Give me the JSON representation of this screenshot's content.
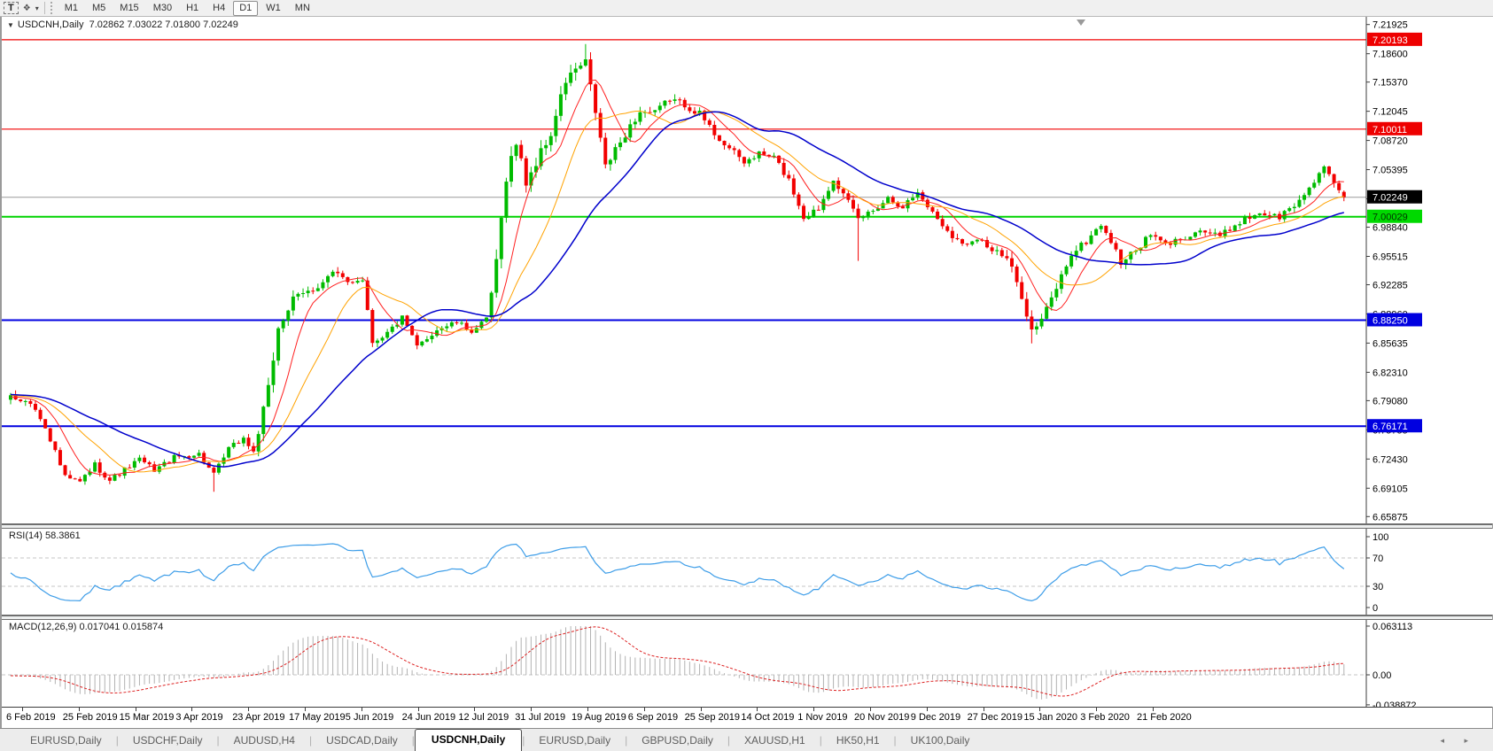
{
  "toolbar": {
    "select_tool_label": "T",
    "styles_icon_glyph": "❖",
    "dropdown_caret": "▾",
    "timeframes": [
      "M1",
      "M5",
      "M15",
      "M30",
      "H1",
      "H4",
      "D1",
      "W1",
      "MN"
    ],
    "active_timeframe": "D1"
  },
  "header": {
    "collapse_glyph": "▼",
    "symbol_period": "USDCNH,Daily",
    "ohlc_text": "7.02862 7.03022 7.01800 7.02249"
  },
  "price_axis": {
    "ticks": [
      "7.21925",
      "7.18600",
      "7.15370",
      "7.12045",
      "7.08720",
      "7.05395",
      "7.02070",
      "6.98840",
      "6.95515",
      "6.92285",
      "6.88960",
      "6.85635",
      "6.82310",
      "6.79080",
      "6.75755",
      "6.72430",
      "6.69105",
      "6.65875"
    ],
    "badges": [
      {
        "label": "7.20193",
        "price": 7.20193,
        "bg": "#ee0000",
        "fg": "#ffffff"
      },
      {
        "label": "7.10011",
        "price": 7.10011,
        "bg": "#ee0000",
        "fg": "#ffffff"
      },
      {
        "label": "7.02249",
        "price": 7.02249,
        "bg": "#000000",
        "fg": "#ffffff"
      },
      {
        "label": "7.00029",
        "price": 7.00029,
        "bg": "#00d900",
        "fg": "#003300"
      },
      {
        "label": "6.88250",
        "price": 6.8825,
        "bg": "#0000e0",
        "fg": "#ffffff"
      },
      {
        "label": "6.76171",
        "price": 6.76171,
        "bg": "#0000e0",
        "fg": "#ffffff"
      }
    ]
  },
  "rsi_panel": {
    "label": "RSI(14) 58.3861",
    "axis_ticks": [
      "100",
      "70",
      "30",
      "0"
    ],
    "levels": [
      70,
      30
    ],
    "line_color": "#3d9de8"
  },
  "macd_panel": {
    "label": "MACD(12,26,9) 0.017041 0.015874",
    "axis_ticks": [
      "0.063113",
      "0.00",
      "-0.038872"
    ],
    "axis_values": [
      0.063113,
      0.0,
      -0.038872
    ],
    "histogram_color": "#b2b2b2",
    "signal_color": "#dd2222"
  },
  "date_axis": {
    "labels": [
      "6 Feb 2019",
      "25 Feb 2019",
      "15 Mar 2019",
      "3 Apr 2019",
      "23 Apr 2019",
      "17 May 2019",
      "5 Jun 2019",
      "24 Jun 2019",
      "12 Jul 2019",
      "31 Jul 2019",
      "19 Aug 2019",
      "6 Sep 2019",
      "25 Sep 2019",
      "14 Oct 2019",
      "1 Nov 2019",
      "20 Nov 2019",
      "9 Dec 2019",
      "27 Dec 2019",
      "15 Jan 2020",
      "3 Feb 2020",
      "21 Feb 2020"
    ]
  },
  "tab_bar": {
    "tabs": [
      "EURUSD,Daily",
      "USDCHF,Daily",
      "AUDUSD,H4",
      "USDCAD,Daily",
      "USDCNH,Daily",
      "EURUSD,Daily",
      "GBPUSD,Daily",
      "XAUUSD,H1",
      "HK50,H1",
      "UK100,Daily"
    ],
    "active_index": 4,
    "left_arrow": "◂",
    "right_arrow": "▸"
  },
  "chart_data": {
    "type": "candlestick",
    "symbol": "USDCNH",
    "timeframe": "Daily",
    "n_bars": 270,
    "last_ohlc": {
      "open": 7.02862,
      "high": 7.03022,
      "low": 7.018,
      "close": 7.02249
    },
    "price_range": [
      6.655,
      7.225
    ],
    "up_color": "#00bb00",
    "down_color": "#f20000",
    "current_price": 7.02249,
    "horizontal_lines": [
      {
        "price": 7.20193,
        "color": "#f00000",
        "width": 1.2,
        "style": "solid"
      },
      {
        "price": 7.10011,
        "color": "#f00000",
        "width": 1.2,
        "style": "solid"
      },
      {
        "price": 7.02249,
        "color": "#9a9a9a",
        "width": 1,
        "style": "solid"
      },
      {
        "price": 7.00029,
        "color": "#00d300",
        "width": 2,
        "style": "solid"
      },
      {
        "price": 6.8825,
        "color": "#0000e0",
        "width": 2,
        "style": "solid"
      },
      {
        "price": 6.76171,
        "color": "#0000e0",
        "width": 2,
        "style": "solid"
      }
    ],
    "moving_averages": [
      {
        "period": 8,
        "color": "#ff2020",
        "width": 1
      },
      {
        "period": 17,
        "color": "#ffa200",
        "width": 1
      },
      {
        "period": 34,
        "color": "#0000cc",
        "width": 1.5
      }
    ],
    "close_anchors": [
      [
        -40,
        6.802
      ],
      [
        -20,
        6.798
      ],
      [
        0,
        6.795
      ],
      [
        4,
        6.788
      ],
      [
        7,
        6.762
      ],
      [
        11,
        6.703
      ],
      [
        14,
        6.698
      ],
      [
        17,
        6.718
      ],
      [
        20,
        6.7
      ],
      [
        23,
        6.712
      ],
      [
        26,
        6.724
      ],
      [
        29,
        6.712
      ],
      [
        33,
        6.726
      ],
      [
        38,
        6.73
      ],
      [
        41,
        6.706
      ],
      [
        44,
        6.736
      ],
      [
        47,
        6.748
      ],
      [
        49,
        6.732
      ],
      [
        52,
        6.802
      ],
      [
        54,
        6.875
      ],
      [
        57,
        6.905
      ],
      [
        61,
        6.918
      ],
      [
        65,
        6.936
      ],
      [
        68,
        6.926
      ],
      [
        71,
        6.93
      ],
      [
        73,
        6.858
      ],
      [
        76,
        6.868
      ],
      [
        79,
        6.885
      ],
      [
        82,
        6.852
      ],
      [
        86,
        6.872
      ],
      [
        90,
        6.88
      ],
      [
        93,
        6.87
      ],
      [
        96,
        6.882
      ],
      [
        98,
        6.945
      ],
      [
        100,
        7.048
      ],
      [
        102,
        7.085
      ],
      [
        104,
        7.04
      ],
      [
        106,
        7.062
      ],
      [
        109,
        7.095
      ],
      [
        112,
        7.155
      ],
      [
        114,
        7.168
      ],
      [
        116,
        7.175
      ],
      [
        118,
        7.12
      ],
      [
        120,
        7.058
      ],
      [
        122,
        7.075
      ],
      [
        124,
        7.095
      ],
      [
        127,
        7.12
      ],
      [
        130,
        7.118
      ],
      [
        133,
        7.135
      ],
      [
        136,
        7.128
      ],
      [
        139,
        7.118
      ],
      [
        142,
        7.095
      ],
      [
        145,
        7.078
      ],
      [
        148,
        7.062
      ],
      [
        151,
        7.072
      ],
      [
        154,
        7.068
      ],
      [
        157,
        7.042
      ],
      [
        160,
        7.0
      ],
      [
        163,
        7.01
      ],
      [
        166,
        7.045
      ],
      [
        168,
        7.025
      ],
      [
        171,
        6.998
      ],
      [
        174,
        7.008
      ],
      [
        177,
        7.022
      ],
      [
        180,
        7.012
      ],
      [
        183,
        7.028
      ],
      [
        186,
        7.005
      ],
      [
        189,
        6.985
      ],
      [
        192,
        6.968
      ],
      [
        195,
        6.978
      ],
      [
        198,
        6.962
      ],
      [
        201,
        6.952
      ],
      [
        204,
        6.912
      ],
      [
        206,
        6.87
      ],
      [
        208,
        6.882
      ],
      [
        211,
        6.92
      ],
      [
        214,
        6.958
      ],
      [
        217,
        6.972
      ],
      [
        220,
        6.992
      ],
      [
        222,
        6.972
      ],
      [
        224,
        6.948
      ],
      [
        227,
        6.962
      ],
      [
        230,
        6.98
      ],
      [
        233,
        6.968
      ],
      [
        236,
        6.975
      ],
      [
        240,
        6.985
      ],
      [
        244,
        6.978
      ],
      [
        248,
        6.995
      ],
      [
        252,
        7.005
      ],
      [
        256,
        7.0
      ],
      [
        260,
        7.018
      ],
      [
        263,
        7.042
      ],
      [
        265,
        7.058
      ],
      [
        267,
        7.035
      ],
      [
        269,
        7.02249
      ]
    ],
    "volatility_anchors": [
      [
        -40,
        0.012
      ],
      [
        0,
        0.013
      ],
      [
        10,
        0.012
      ],
      [
        30,
        0.009
      ],
      [
        48,
        0.01
      ],
      [
        52,
        0.022
      ],
      [
        60,
        0.016
      ],
      [
        70,
        0.012
      ],
      [
        95,
        0.009
      ],
      [
        98,
        0.028
      ],
      [
        104,
        0.022
      ],
      [
        116,
        0.02
      ],
      [
        120,
        0.018
      ],
      [
        130,
        0.014
      ],
      [
        150,
        0.011
      ],
      [
        160,
        0.013
      ],
      [
        170,
        0.012
      ],
      [
        186,
        0.01
      ],
      [
        204,
        0.018
      ],
      [
        208,
        0.016
      ],
      [
        220,
        0.012
      ],
      [
        240,
        0.01
      ],
      [
        260,
        0.012
      ],
      [
        269,
        0.012
      ]
    ],
    "wick_overrides": [
      {
        "i": 41,
        "low": 6.687
      },
      {
        "i": 116,
        "high": 7.197
      },
      {
        "i": 171,
        "low": 6.95
      },
      {
        "i": 206,
        "low": 6.856
      }
    ],
    "indicators": [
      {
        "name": "RSI",
        "period": 14,
        "current_value": 58.3861,
        "range": [
          0,
          100
        ],
        "levels": [
          70,
          30
        ]
      },
      {
        "name": "MACD",
        "params": [
          12,
          26,
          9
        ],
        "current_values": [
          0.017041,
          0.015874
        ],
        "axis_range": [
          -0.038872,
          0.063113
        ]
      }
    ]
  }
}
